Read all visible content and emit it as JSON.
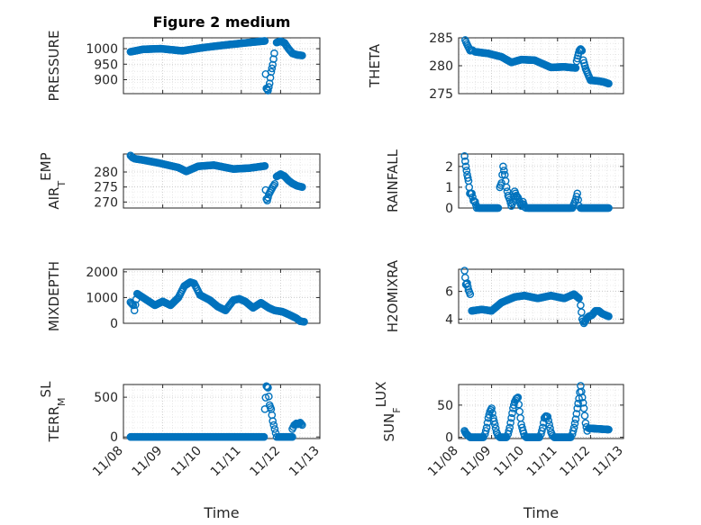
{
  "figure": {
    "background": "#ffffff",
    "marker_color": "#0072BD"
  },
  "chart_data": [
    {
      "type": "scatter",
      "id": "pressure",
      "title": "Figure 2 medium",
      "ylabel": {
        "main": "PRESSURE"
      },
      "xlabel": "",
      "ylim": [
        855,
        1035
      ],
      "yticks": [
        900,
        950,
        1000
      ],
      "xlim": [
        0,
        5
      ],
      "xticks": [],
      "grid": true,
      "segments": [
        {
          "x": [
            0.18,
            0.5,
            0.95,
            1.5,
            2.0,
            2.6,
            3.2,
            3.6
          ],
          "y": [
            990,
            998,
            1000,
            993,
            1003,
            1012,
            1020,
            1025
          ]
        },
        {
          "x": [
            3.62,
            3.64,
            3.68,
            3.72,
            3.76,
            3.8,
            3.84
          ],
          "y": [
            918,
            872,
            865,
            888,
            925,
            948,
            985
          ]
        },
        {
          "x": [
            3.9,
            4.0,
            4.1,
            4.2,
            4.3,
            4.42,
            4.55
          ],
          "y": [
            1020,
            1024,
            1019,
            1000,
            985,
            980,
            978
          ]
        }
      ]
    },
    {
      "type": "scatter",
      "id": "theta",
      "ylabel": {
        "main": "THETA"
      },
      "xlabel": "",
      "ylim": [
        275,
        285
      ],
      "yticks": [
        275,
        280,
        285
      ],
      "xlim": [
        0,
        5
      ],
      "xticks": [],
      "grid": true,
      "segments": [
        {
          "x": [
            0.2,
            0.25,
            0.3,
            0.35,
            0.42
          ],
          "y": [
            284.6,
            283.9,
            283.3,
            282.7,
            282.8
          ]
        },
        {
          "x": [
            0.5,
            0.9,
            1.3,
            1.6,
            1.9,
            2.3,
            2.8,
            3.2,
            3.55
          ],
          "y": [
            282.5,
            282.2,
            281.6,
            280.6,
            281.1,
            281.0,
            279.7,
            279.8,
            279.6
          ]
        },
        {
          "x": [
            3.58,
            3.62,
            3.66,
            3.7,
            3.74
          ],
          "y": [
            280.8,
            281.8,
            282.7,
            283.0,
            282.7
          ]
        },
        {
          "x": [
            3.78,
            3.85,
            3.92,
            4.0,
            4.2,
            4.4,
            4.55
          ],
          "y": [
            281.0,
            279.5,
            278.5,
            277.4,
            277.3,
            277.1,
            276.8
          ]
        }
      ]
    },
    {
      "type": "scatter",
      "id": "air_temp",
      "ylabel": {
        "main": "AIR",
        "sub": "T",
        "rest": "EMP"
      },
      "xlabel": "",
      "ylim": [
        268,
        286
      ],
      "yticks": [
        270,
        275,
        280
      ],
      "xlim": [
        0,
        5
      ],
      "xticks": [],
      "grid": true,
      "segments": [
        {
          "x": [
            0.18,
            0.23,
            0.3,
            0.5,
            0.9,
            1.4,
            1.6,
            1.9,
            2.3,
            2.8,
            3.2,
            3.6
          ],
          "y": [
            285.5,
            284.8,
            284.4,
            284.0,
            283.0,
            281.5,
            280.2,
            281.9,
            282.3,
            281.0,
            281.3,
            282.0
          ]
        },
        {
          "x": [
            3.62,
            3.64,
            3.66,
            3.7,
            3.75,
            3.8,
            3.85
          ],
          "y": [
            274.0,
            271.0,
            270.5,
            272.5,
            273.8,
            275.0,
            276.0
          ]
        },
        {
          "x": [
            3.9,
            4.0,
            4.1,
            4.2,
            4.3,
            4.42,
            4.55
          ],
          "y": [
            278.5,
            279.3,
            278.6,
            277.2,
            276.2,
            275.4,
            275.0
          ]
        }
      ]
    },
    {
      "type": "scatter",
      "id": "rainfall",
      "ylabel": {
        "main": "RAINFALL"
      },
      "xlabel": "",
      "ylim": [
        0,
        2.6
      ],
      "yticks": [
        0,
        1,
        2
      ],
      "xlim": [
        0,
        5
      ],
      "xticks": [],
      "grid": true,
      "segments": [
        {
          "x": [
            0.18,
            0.22,
            0.26,
            0.3,
            0.34,
            0.4,
            0.45,
            0.5,
            0.55
          ],
          "y": [
            2.5,
            2.0,
            1.6,
            1.3,
            0.7,
            0.7,
            0.35,
            0.3,
            0.0
          ]
        },
        {
          "x": [
            0.6,
            1.2
          ],
          "y": [
            0,
            0
          ]
        },
        {
          "x": [
            1.25,
            1.3,
            1.35,
            1.4,
            1.45,
            1.5,
            1.55,
            1.6,
            1.65,
            1.7,
            1.75,
            1.8,
            1.85,
            1.9,
            1.95,
            2.0,
            2.05
          ],
          "y": [
            1.0,
            1.2,
            2.0,
            1.6,
            1.0,
            0.6,
            0.4,
            0.1,
            0.3,
            0.8,
            0.6,
            0.5,
            0.3,
            0.1,
            0.3,
            0.05,
            0.0
          ]
        },
        {
          "x": [
            2.1,
            3.4
          ],
          "y": [
            0,
            0
          ]
        },
        {
          "x": [
            3.45,
            3.5,
            3.55,
            3.6,
            3.65
          ],
          "y": [
            0.0,
            0.2,
            0.4,
            0.7,
            0.1
          ]
        },
        {
          "x": [
            3.7,
            4.55
          ],
          "y": [
            0,
            0
          ]
        }
      ]
    },
    {
      "type": "scatter",
      "id": "mixdepth",
      "ylabel": {
        "main": "MIXDEPTH"
      },
      "xlabel": "",
      "ylim": [
        0,
        2100
      ],
      "yticks": [
        0,
        1000,
        2000
      ],
      "xlim": [
        0,
        5
      ],
      "xticks": [],
      "grid": true,
      "segments": [
        {
          "x": [
            0.18,
            0.25,
            0.28,
            0.35,
            0.45,
            0.6,
            0.8,
            1.0,
            1.2,
            1.4,
            1.55,
            1.7,
            1.8,
            1.95,
            2.2,
            2.4,
            2.6,
            2.8,
            2.95,
            3.1,
            3.3,
            3.5,
            3.7,
            3.85,
            4.05,
            4.2,
            4.4,
            4.5,
            4.6
          ],
          "y": [
            820,
            700,
            500,
            1150,
            1050,
            900,
            700,
            850,
            700,
            1000,
            1450,
            1600,
            1550,
            1100,
            900,
            650,
            500,
            900,
            950,
            850,
            600,
            800,
            600,
            500,
            450,
            350,
            200,
            80,
            60
          ]
        }
      ]
    },
    {
      "type": "scatter",
      "id": "h2omixra",
      "ylabel": {
        "main": "H2OMIXRA"
      },
      "xlabel": "",
      "ylim": [
        3.7,
        7.6
      ],
      "yticks": [
        4,
        6
      ],
      "xlim": [
        0,
        5
      ],
      "xticks": [],
      "grid": true,
      "segments": [
        {
          "x": [
            0.18,
            0.22,
            0.26,
            0.3,
            0.35
          ],
          "y": [
            7.5,
            6.5,
            6.6,
            6.1,
            5.8
          ]
        },
        {
          "x": [
            0.4,
            0.7,
            1.0,
            1.3,
            1.7,
            2.0,
            2.4,
            2.8,
            3.2,
            3.5,
            3.65
          ],
          "y": [
            4.6,
            4.7,
            4.6,
            5.2,
            5.6,
            5.7,
            5.5,
            5.7,
            5.5,
            5.8,
            5.5
          ]
        },
        {
          "x": [
            3.7,
            3.75,
            3.8,
            3.85,
            3.9
          ],
          "y": [
            5.0,
            4.0,
            3.7,
            3.9,
            4.1
          ]
        },
        {
          "x": [
            3.95,
            4.05,
            4.15,
            4.25,
            4.35,
            4.45,
            4.55
          ],
          "y": [
            4.2,
            4.3,
            4.6,
            4.6,
            4.4,
            4.3,
            4.2
          ]
        }
      ]
    },
    {
      "type": "scatter",
      "id": "terr_msl",
      "ylabel": {
        "main": "TERR",
        "sub": "M",
        "rest": "SL"
      },
      "xlabel": "Time",
      "ylim": [
        -20,
        660
      ],
      "yticks": [
        0,
        500
      ],
      "xlim": [
        0,
        5
      ],
      "xticks": [
        0,
        1,
        2,
        3,
        4,
        5
      ],
      "xticklabels": [
        "11/08",
        "11/09",
        "11/10",
        "11/11",
        "11/12",
        "11/13"
      ],
      "grid": true,
      "segments": [
        {
          "x": [
            0.18,
            3.58
          ],
          "y": [
            0,
            0
          ]
        },
        {
          "x": [
            3.6,
            3.64,
            3.68,
            3.72,
            3.76,
            3.8,
            3.85,
            3.9
          ],
          "y": [
            350,
            640,
            620,
            400,
            350,
            200,
            100,
            0
          ]
        },
        {
          "x": [
            3.95,
            4.3
          ],
          "y": [
            0,
            0
          ]
        },
        {
          "x": [
            4.3,
            4.35,
            4.4,
            4.45,
            4.5,
            4.55
          ],
          "y": [
            100,
            150,
            170,
            160,
            180,
            150
          ]
        }
      ]
    },
    {
      "type": "scatter",
      "id": "sun_flux",
      "ylabel": {
        "main": "SUN",
        "sub": "F",
        "rest": "LUX"
      },
      "xlabel": "Time",
      "ylim": [
        -2,
        82
      ],
      "yticks": [
        0,
        50
      ],
      "xlim": [
        0,
        5
      ],
      "xticks": [
        0,
        1,
        2,
        3,
        4,
        5
      ],
      "xticklabels": [
        "11/08",
        "11/09",
        "11/10",
        "11/11",
        "11/12",
        "11/13"
      ],
      "grid": true,
      "segments": [
        {
          "x": [
            0.18,
            0.22,
            0.26,
            0.3
          ],
          "y": [
            10,
            6,
            4,
            2
          ]
        },
        {
          "x": [
            0.35,
            0.75
          ],
          "y": [
            0,
            0
          ]
        },
        {
          "x": [
            0.8,
            0.85,
            0.9,
            0.95,
            1.0,
            1.05,
            1.1,
            1.15,
            1.2
          ],
          "y": [
            5,
            15,
            30,
            40,
            45,
            30,
            20,
            8,
            2
          ]
        },
        {
          "x": [
            1.25,
            1.45
          ],
          "y": [
            0,
            0
          ]
        },
        {
          "x": [
            1.5,
            1.55,
            1.6,
            1.65,
            1.7,
            1.75,
            1.8,
            1.85,
            1.9,
            1.95,
            2.0
          ],
          "y": [
            5,
            15,
            30,
            45,
            55,
            60,
            62,
            40,
            20,
            10,
            2
          ]
        },
        {
          "x": [
            2.05,
            2.45
          ],
          "y": [
            0,
            0
          ]
        },
        {
          "x": [
            2.5,
            2.55,
            2.6,
            2.65,
            2.7,
            2.75,
            2.8,
            2.85
          ],
          "y": [
            5,
            15,
            30,
            33,
            32,
            20,
            8,
            2
          ]
        },
        {
          "x": [
            2.9,
            3.4
          ],
          "y": [
            0,
            0
          ]
        },
        {
          "x": [
            3.45,
            3.5,
            3.55,
            3.6,
            3.65,
            3.7,
            3.75,
            3.8,
            3.85,
            3.9
          ],
          "y": [
            5,
            15,
            28,
            45,
            60,
            80,
            62,
            45,
            22,
            10
          ]
        },
        {
          "x": [
            3.95,
            4.55
          ],
          "y": [
            14,
            12
          ]
        }
      ]
    }
  ]
}
